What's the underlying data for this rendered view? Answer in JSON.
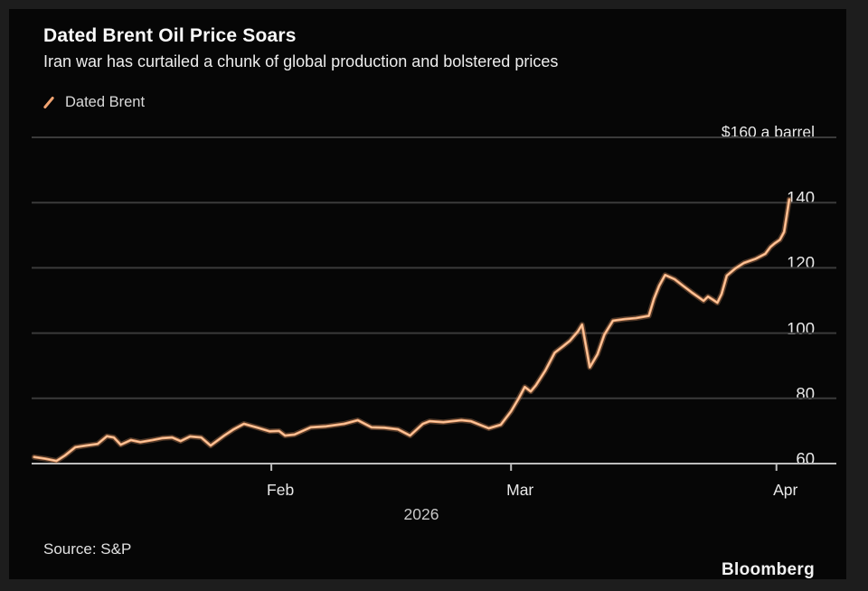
{
  "chart_data": {
    "type": "line",
    "title": "Dated Brent Oil Price Soars",
    "subtitle": "Iran war has curtailed a chunk of global production and bolstered prices",
    "legend_position": "top-left",
    "grid": "horizontal",
    "y_axis": {
      "unit_label": "$160 a barrel",
      "range": [
        60,
        160
      ],
      "ticks": [
        {
          "value": 160,
          "label": ""
        },
        {
          "value": 140,
          "label": "140"
        },
        {
          "value": 120,
          "label": "120"
        },
        {
          "value": 100,
          "label": "100"
        },
        {
          "value": 80,
          "label": "80"
        },
        {
          "value": 60,
          "label": "60"
        }
      ]
    },
    "x_axis": {
      "unit": "day of year 2026",
      "range": [
        4,
        98
      ],
      "ticks": [
        {
          "day": 32,
          "label": "Feb"
        },
        {
          "day": 60,
          "label": "Mar"
        },
        {
          "day": 91,
          "label": "Apr"
        }
      ],
      "year_label": "2026"
    },
    "series": [
      {
        "name": "Dated Brent",
        "color": "#f2a472",
        "highlight_color": "#ffd7b0",
        "points": [
          [
            4.3,
            62
          ],
          [
            5.6,
            61.5
          ],
          [
            6.9,
            60.8
          ],
          [
            7.9,
            62.5
          ],
          [
            9.1,
            65
          ],
          [
            10.3,
            65.5
          ],
          [
            11.7,
            66
          ],
          [
            12.8,
            68.4
          ],
          [
            13.6,
            68
          ],
          [
            14.4,
            65.8
          ],
          [
            15.6,
            67.2
          ],
          [
            16.7,
            66.6
          ],
          [
            18.1,
            67.2
          ],
          [
            19.3,
            67.8
          ],
          [
            20.4,
            68
          ],
          [
            21.4,
            66.9
          ],
          [
            22.5,
            68.3
          ],
          [
            23.8,
            68
          ],
          [
            24.9,
            65.5
          ],
          [
            26.5,
            68.6
          ],
          [
            27.6,
            70.5
          ],
          [
            28.8,
            72.2
          ],
          [
            30.4,
            71
          ],
          [
            31.8,
            69.9
          ],
          [
            32.9,
            70
          ],
          [
            33.6,
            68.6
          ],
          [
            34.7,
            68.9
          ],
          [
            36.6,
            71.1
          ],
          [
            38.4,
            71.4
          ],
          [
            40.5,
            72.2
          ],
          [
            42.1,
            73.3
          ],
          [
            43.7,
            71.1
          ],
          [
            45.2,
            71
          ],
          [
            46.8,
            70.5
          ],
          [
            48.2,
            68.6
          ],
          [
            49.7,
            72.2
          ],
          [
            50.5,
            73
          ],
          [
            52.1,
            72.7
          ],
          [
            54.2,
            73.3
          ],
          [
            55.3,
            73
          ],
          [
            57.4,
            70.8
          ],
          [
            58.8,
            71.9
          ],
          [
            60.0,
            76
          ],
          [
            60.9,
            80
          ],
          [
            61.6,
            83.5
          ],
          [
            62.3,
            82.1
          ],
          [
            62.9,
            84
          ],
          [
            64.0,
            88.5
          ],
          [
            65.1,
            94
          ],
          [
            66.1,
            96
          ],
          [
            66.9,
            97.7
          ],
          [
            67.8,
            100.5
          ],
          [
            68.3,
            102.6
          ],
          [
            69.2,
            89.5
          ],
          [
            70.1,
            93.5
          ],
          [
            70.9,
            99.5
          ],
          [
            71.9,
            103.8
          ],
          [
            73.3,
            104.3
          ],
          [
            74.6,
            104.6
          ],
          [
            76.1,
            105.3
          ],
          [
            76.7,
            110.5
          ],
          [
            77.3,
            114.5
          ],
          [
            78.0,
            117.8
          ],
          [
            79.1,
            116.5
          ],
          [
            80.1,
            114.5
          ],
          [
            81.2,
            112.3
          ],
          [
            82.5,
            109.9
          ],
          [
            83.0,
            111.2
          ],
          [
            83.6,
            110.2
          ],
          [
            84.1,
            109.3
          ],
          [
            84.6,
            112
          ],
          [
            85.2,
            117.6
          ],
          [
            86.2,
            119.8
          ],
          [
            87.2,
            121.5
          ],
          [
            88.6,
            122.8
          ],
          [
            89.7,
            124.3
          ],
          [
            90.3,
            126.4
          ],
          [
            90.8,
            127.5
          ],
          [
            91.4,
            128.6
          ],
          [
            91.9,
            131
          ],
          [
            92.2,
            136
          ],
          [
            92.5,
            141
          ]
        ]
      }
    ],
    "colors": {
      "background": "#060606",
      "frame": "#1d1d1d",
      "gridline": "#3a3a3a",
      "axis": "#bdbdbd"
    }
  },
  "footer": {
    "source": "Source: S&P",
    "brand": "Bloomberg"
  }
}
